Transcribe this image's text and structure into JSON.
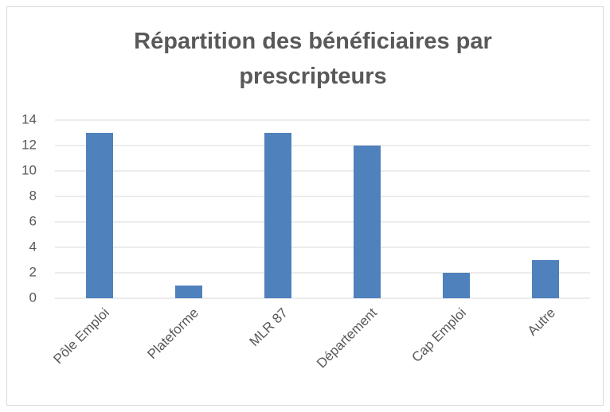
{
  "chart_data": {
    "type": "bar",
    "title": "Répartition des bénéficiaires par prescripteurs",
    "categories": [
      "Pôle Emploi",
      "Plateforme",
      "MLR 87",
      "Département",
      "Cap Emploi",
      "Autre"
    ],
    "values": [
      13,
      1,
      13,
      12,
      2,
      3
    ],
    "color": "#4f81bd",
    "ylim": [
      0,
      14
    ],
    "yticks": [
      0,
      2,
      4,
      6,
      8,
      10,
      12,
      14
    ],
    "grid": true
  }
}
